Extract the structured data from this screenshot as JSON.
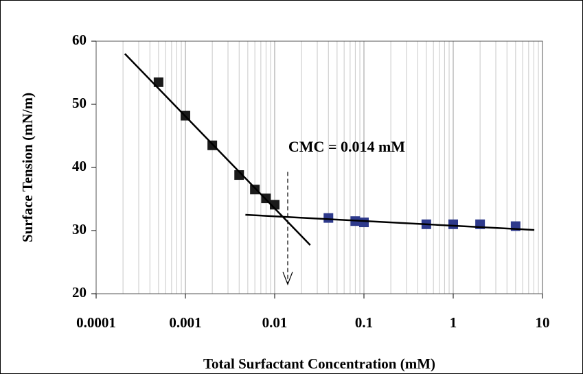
{
  "chart_data": {
    "type": "scatter",
    "x_label": "Total Surfactant Concentration (mM)",
    "y_label": "Surface Tension (mN/m)",
    "annotation": "CMC = 0.014 mM",
    "cmc_x": 0.014,
    "cmc_arrow_y": [
      39.3,
      21.5
    ],
    "x_log": true,
    "minor_grid": true,
    "xlim": [
      0.0001,
      10
    ],
    "xticks": [
      0.0001,
      0.001,
      0.01,
      0.1,
      1,
      10
    ],
    "ylim": [
      20,
      60
    ],
    "yticks": [
      20,
      30,
      40,
      50,
      60
    ],
    "series": [
      {
        "color": "#1a1a1a",
        "marker": "square",
        "x": [
          0.0005,
          0.001,
          0.002,
          0.004,
          0.006,
          0.008,
          0.01
        ],
        "values": [
          53.5,
          48.2,
          43.5,
          38.8,
          36.5,
          35.1,
          34.1
        ]
      },
      {
        "color": "#2e3a8c",
        "marker": "square",
        "x": [
          0.04,
          0.08,
          0.1,
          0.5,
          1,
          2,
          5
        ],
        "values": [
          32,
          31.5,
          31.3,
          31,
          31,
          31,
          30.7
        ]
      },
      {
        "color": "#000000",
        "marker": "line",
        "x": [
          0.00021,
          0.025
        ],
        "values": [
          58,
          27.7
        ]
      },
      {
        "color": "#000000",
        "marker": "line",
        "x": [
          0.0047,
          8.1
        ],
        "values": [
          32.5,
          30.1
        ]
      }
    ]
  }
}
